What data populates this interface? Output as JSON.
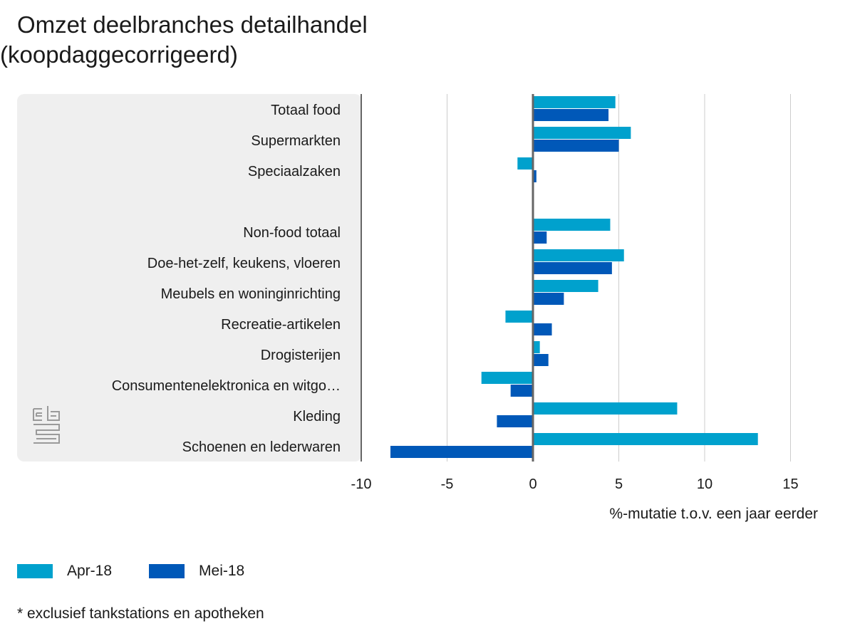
{
  "title": {
    "line1": "Omzet deelbranches detailhandel",
    "line2": "(koopdaggecorrigeerd)"
  },
  "footnote": "* exclusief tankstations en apotheken",
  "colors": {
    "apr": "#00a1cd",
    "mei": "#0058b8",
    "panel": "#efefef",
    "grid": "#cccccc",
    "axis": "#666666"
  },
  "chart_data": {
    "type": "bar",
    "orientation": "horizontal",
    "title": "Omzet deelbranches detailhandel (koopdaggecorrigeerd)",
    "xlabel": "%-mutatie t.o.v. een jaar eerder",
    "ylabel": "",
    "xlim": [
      -10,
      15
    ],
    "xticks": [
      -10,
      -5,
      0,
      5,
      10,
      15
    ],
    "xtick_labels": [
      "-10",
      "-5",
      "0",
      "5",
      "10",
      "15"
    ],
    "categories": [
      "Totaal food",
      "Supermarkten",
      "Speciaalzaken",
      "",
      "Non-food totaal",
      "Doe-het-zelf, keukens, vloeren",
      "Meubels en woninginrichting",
      "Recreatie-artikelen",
      "Drogisterijen",
      "Consumentenelektronica en witgo…",
      "Kleding",
      "Schoenen en lederwaren"
    ],
    "series": [
      {
        "name": "Apr-18",
        "color": "#00a1cd",
        "values": [
          4.8,
          5.7,
          -0.9,
          null,
          4.5,
          5.3,
          3.8,
          -1.6,
          0.4,
          -3.0,
          8.4,
          13.1
        ]
      },
      {
        "name": "Mei-18",
        "color": "#0058b8",
        "values": [
          4.4,
          5.0,
          0.2,
          null,
          0.8,
          4.6,
          1.8,
          1.1,
          0.9,
          -1.3,
          -2.1,
          -8.3
        ]
      }
    ],
    "legend_position": "bottom-left",
    "grid": true
  }
}
